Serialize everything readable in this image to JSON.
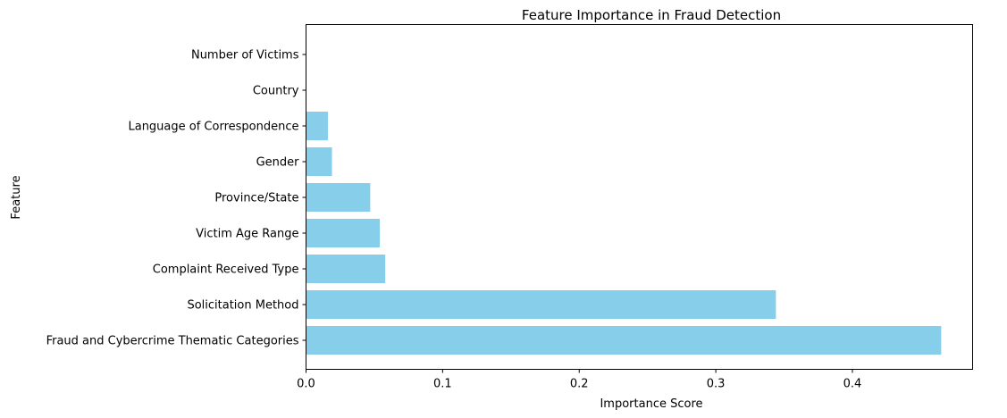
{
  "chart_data": {
    "type": "bar",
    "orientation": "horizontal",
    "title": "Feature Importance in Fraud Detection",
    "xlabel": "Importance Score",
    "ylabel": "Feature",
    "categories": [
      "Fraud and Cybercrime Thematic Categories",
      "Solicitation Method",
      "Complaint Received Type",
      "Victim Age Range",
      "Province/State",
      "Gender",
      "Language of Correspondence",
      "Country",
      "Number of Victims"
    ],
    "values": [
      0.465,
      0.344,
      0.058,
      0.054,
      0.047,
      0.019,
      0.016,
      0.0,
      0.0
    ],
    "xlim": [
      0,
      0.488
    ],
    "xticks": [
      0.0,
      0.1,
      0.2,
      0.3,
      0.4
    ],
    "xtick_labels": [
      "0.0",
      "0.1",
      "0.2",
      "0.3",
      "0.4"
    ],
    "bar_color": "#87CEEB",
    "grid": false,
    "legend": "none"
  }
}
